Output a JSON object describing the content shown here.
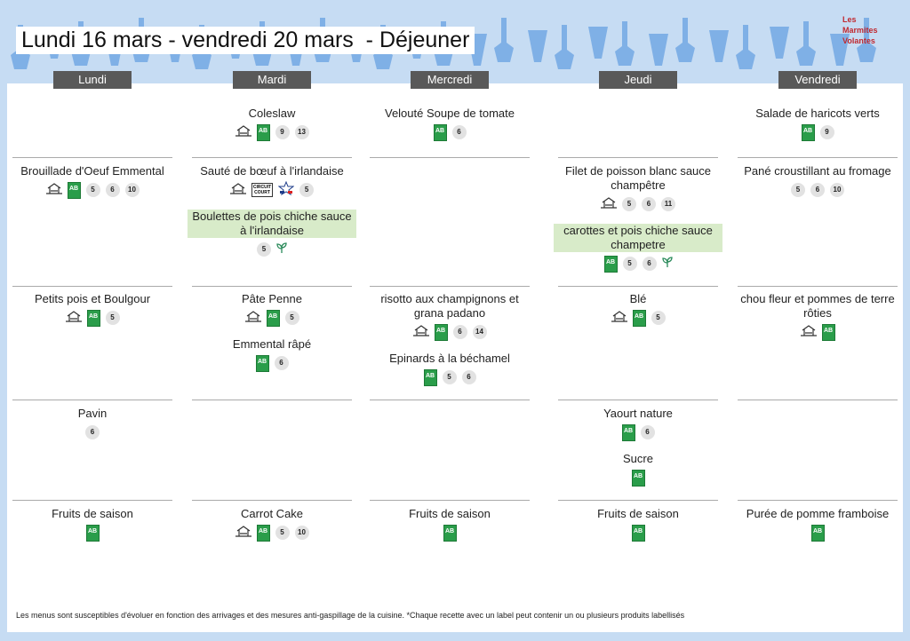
{
  "header": {
    "title": "Lundi 16 mars - vendredi 20 mars  - Déjeuner",
    "logo": [
      "Les",
      "Marmites",
      "Volantes"
    ]
  },
  "icons": {
    "ab": "AB",
    "circuit_court": [
      "CIRCUIT",
      "COURT"
    ]
  },
  "days": [
    "Lundi",
    "Mardi",
    "Mercredi",
    "Jeudi",
    "Vendredi"
  ],
  "rows": [
    [
      [],
      [
        {
          "name": "Coleslaw",
          "homemade": true,
          "bio": true,
          "allergens": [
            9,
            13
          ]
        }
      ],
      [
        {
          "name": "Velouté Soupe de tomate",
          "bio": true,
          "allergens": [
            6
          ]
        }
      ],
      [],
      [
        {
          "name": "Salade de haricots verts",
          "bio": true,
          "allergens": [
            9
          ]
        }
      ]
    ],
    [
      [
        {
          "name": "Brouillade d'Oeuf Emmental",
          "homemade": true,
          "bio": true,
          "allergens": [
            5,
            6,
            10
          ]
        }
      ],
      [
        {
          "name": "Sauté de bœuf à l'irlandaise",
          "homemade": true,
          "circuit_court": true,
          "france": true,
          "allergens": [
            5
          ]
        },
        {
          "name": "Boulettes de pois chiche sauce à l'irlandaise",
          "vegetarian": true,
          "allergens": [
            5
          ]
        }
      ],
      [],
      [
        {
          "name": "Filet de poisson blanc sauce champêtre",
          "homemade": true,
          "allergens": [
            5,
            6,
            11
          ]
        },
        {
          "name": "carottes et pois chiche sauce champetre",
          "vegetarian": true,
          "bio": true,
          "allergens": [
            5,
            6
          ]
        }
      ],
      [
        {
          "name": "Pané croustillant au fromage",
          "allergens": [
            5,
            6,
            10
          ]
        }
      ]
    ],
    [
      [
        {
          "name": "Petits pois et Boulgour",
          "homemade": true,
          "bio": true,
          "allergens": [
            5
          ]
        }
      ],
      [
        {
          "name": "Pâte Penne",
          "homemade": true,
          "bio": true,
          "allergens": [
            5
          ]
        },
        {
          "name": "Emmental râpé",
          "bio": true,
          "allergens": [
            6
          ]
        }
      ],
      [
        {
          "name": "risotto aux champignons et grana padano",
          "homemade": true,
          "bio": true,
          "allergens": [
            6,
            14
          ]
        },
        {
          "name": "Epinards à la béchamel",
          "bio": true,
          "allergens": [
            5,
            6
          ]
        }
      ],
      [
        {
          "name": "Blé",
          "homemade": true,
          "bio": true,
          "allergens": [
            5
          ]
        }
      ],
      [
        {
          "name": "chou fleur et pommes de terre rôties",
          "homemade": true,
          "bio": true,
          "allergens": []
        }
      ]
    ],
    [
      [
        {
          "name": "Pavin",
          "allergens": [
            6
          ]
        }
      ],
      [],
      [],
      [
        {
          "name": "Yaourt nature",
          "bio": true,
          "allergens": [
            6
          ]
        },
        {
          "name": "Sucre",
          "bio": true,
          "allergens": []
        }
      ],
      []
    ],
    [
      [
        {
          "name": "Fruits de saison",
          "bio": true,
          "allergens": []
        }
      ],
      [
        {
          "name": "Carrot Cake",
          "homemade": true,
          "bio": true,
          "allergens": [
            5,
            10
          ]
        }
      ],
      [
        {
          "name": "Fruits de saison",
          "bio": true,
          "allergens": []
        }
      ],
      [
        {
          "name": "Fruits de saison",
          "bio": true,
          "allergens": []
        }
      ],
      [
        {
          "name": "Purée de pomme framboise",
          "bio": true,
          "allergens": []
        }
      ]
    ]
  ],
  "footer": "Les menus sont susceptibles d'évoluer en fonction des arrivages et des mesures anti-gaspillage de la cuisine. *Chaque recette avec un label peut contenir un ou plusieurs produits labellisés"
}
